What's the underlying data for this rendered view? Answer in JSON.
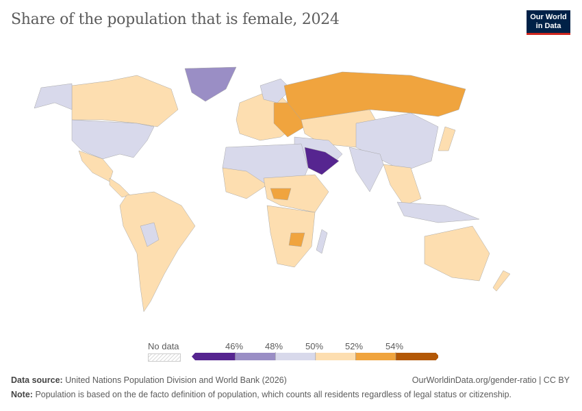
{
  "title": "Share of the population that is female, 2024",
  "logo": {
    "line1": "Our World",
    "line2": "in Data"
  },
  "legend": {
    "no_data_label": "No data",
    "ticks": [
      "46%",
      "48%",
      "50%",
      "52%",
      "54%"
    ],
    "bins": [
      {
        "range": "<46%",
        "color": "#562590"
      },
      {
        "range": "46–48%",
        "color": "#9a8ec5"
      },
      {
        "range": "48–50%",
        "color": "#d8d9eb"
      },
      {
        "range": "50–52%",
        "color": "#fddeb0"
      },
      {
        "range": "52–54%",
        "color": "#f0a43e"
      },
      {
        "range": ">54%",
        "color": "#b35806"
      }
    ]
  },
  "footer": {
    "source_label": "Data source:",
    "source": "United Nations Population Division and World Bank (2026)",
    "url": "OurWorldinData.org/gender-ratio | CC BY",
    "note_label": "Note:",
    "note": "Population is based on the de facto definition of population, which counts all residents regardless of legal status or citizenship."
  }
}
